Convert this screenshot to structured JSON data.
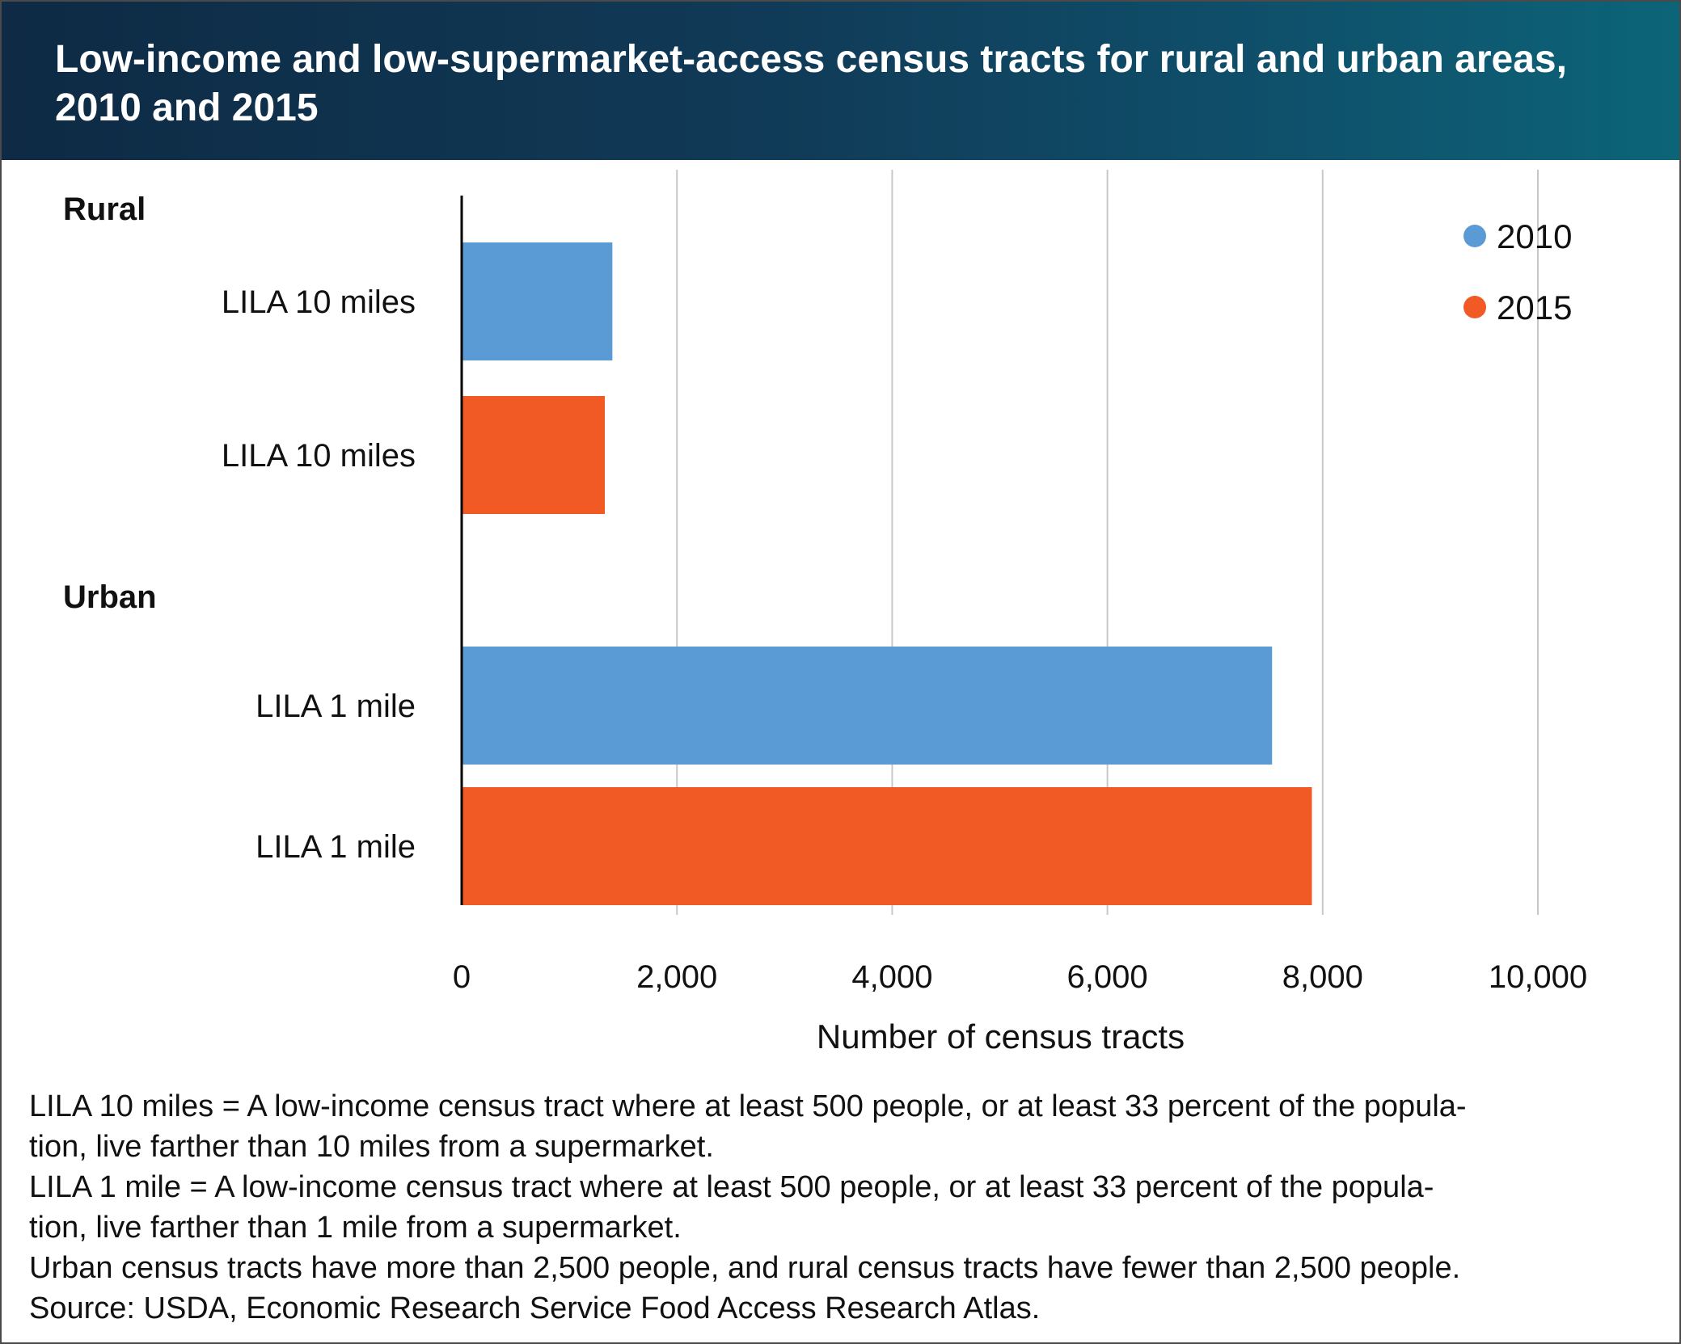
{
  "title": "Low-income and low-supermarket-access census tracts for rural and urban areas, 2010 and 2015",
  "chart_data": {
    "type": "bar",
    "orientation": "horizontal",
    "title": "Low-income and low-supermarket-access census tracts for rural and urban areas, 2010 and 2015",
    "xlabel": "Number of census tracts",
    "xlim": [
      0,
      10000
    ],
    "xticks": [
      0,
      2000,
      4000,
      6000,
      8000,
      10000
    ],
    "xtick_labels": [
      "0",
      "2,000",
      "4,000",
      "6,000",
      "8,000",
      "10,000"
    ],
    "grid": "vertical",
    "legend_position": "top-right",
    "groups": [
      {
        "name": "Rural",
        "bars": [
          {
            "label": "LILA 10 miles",
            "series": "2010",
            "value": 1400
          },
          {
            "label": "LILA 10 miles",
            "series": "2015",
            "value": 1330
          }
        ]
      },
      {
        "name": "Urban",
        "bars": [
          {
            "label": "LILA 1 mile",
            "series": "2010",
            "value": 7530
          },
          {
            "label": "LILA 1 mile",
            "series": "2015",
            "value": 7900
          }
        ]
      }
    ],
    "series": [
      {
        "name": "2010",
        "color": "#5b9bd5"
      },
      {
        "name": "2015",
        "color": "#f15a24"
      }
    ]
  },
  "notes": [
    "LILA 10 miles = A low-income census tract where at least 500 people, or at least 33 percent of the popula-",
    "tion, live farther than 10 miles from a supermarket.",
    "LILA 1 mile = A low-income census tract where at least 500 people, or at least 33 percent of the popula-",
    "tion, live farther than 1 mile from a supermarket.",
    "Urban census tracts have more than 2,500 people, and rural census tracts have fewer than 2,500 people.",
    "Source: USDA, Economic Research Service Food Access Research Atlas."
  ]
}
